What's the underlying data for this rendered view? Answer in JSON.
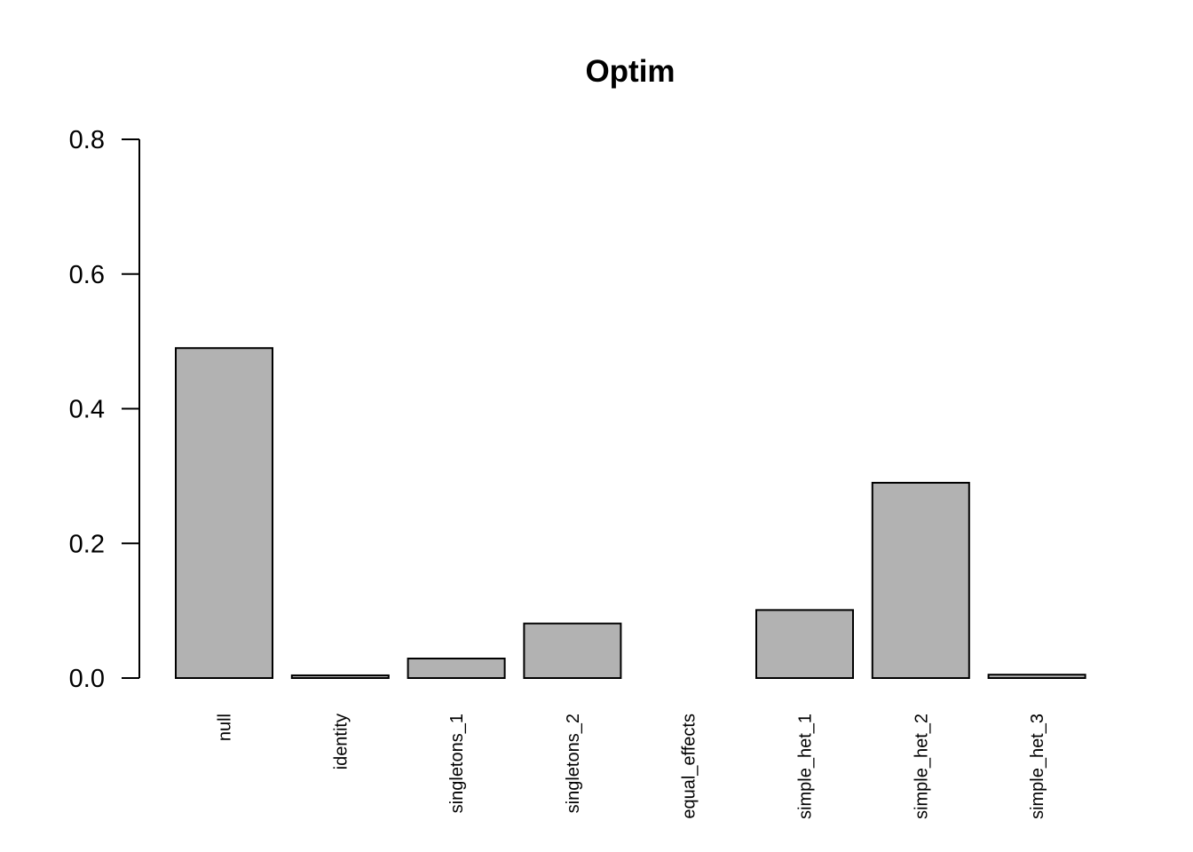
{
  "chart_data": {
    "type": "bar",
    "title": "Optim",
    "xlabel": "",
    "ylabel": "",
    "categories": [
      "null",
      "identity",
      "singletons_1",
      "singletons_2",
      "equal_effects",
      "simple_het_1",
      "simple_het_2",
      "simple_het_3"
    ],
    "values": [
      0.49,
      0.004,
      0.029,
      0.081,
      0.0,
      0.101,
      0.29,
      0.005
    ],
    "ylim": [
      0,
      0.8
    ],
    "yticks": [
      "0.0",
      "0.2",
      "0.4",
      "0.6",
      "0.8"
    ],
    "bar_color": "#b2b2b2",
    "grid": false,
    "legend": "none"
  }
}
